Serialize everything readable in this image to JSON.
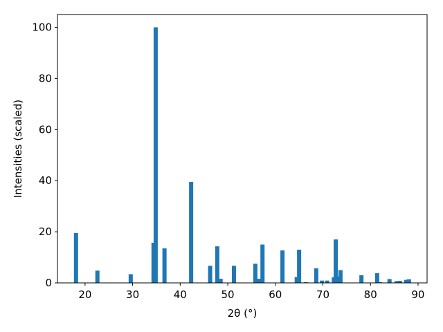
{
  "chart_data": {
    "type": "bar",
    "xlabel": "2θ (°)",
    "ylabel": "Intensities (scaled)",
    "x": [
      18.1,
      22.6,
      29.6,
      34.4,
      34.85,
      36.7,
      42.3,
      46.3,
      47.8,
      48.5,
      51.3,
      55.8,
      56.5,
      57.3,
      61.5,
      64.5,
      65.0,
      66.4,
      68.6,
      69.8,
      70.9,
      72.3,
      72.7,
      73.3,
      73.7,
      78.1,
      81.4,
      82.0,
      84.0,
      85.5,
      86.2,
      87.5,
      88.1
    ],
    "values": [
      19.5,
      4.8,
      3.4,
      15.7,
      100,
      13.5,
      39.5,
      6.7,
      14.3,
      1.6,
      6.7,
      7.5,
      1.6,
      15,
      12.7,
      2.3,
      13,
      0.3,
      5.7,
      0.9,
      0.9,
      2.2,
      17,
      2.5,
      5,
      3,
      3.8,
      0.3,
      1.5,
      0.7,
      0.8,
      1.2,
      1.4
    ],
    "color": "#1f77b4",
    "xlim": [
      14.2,
      91.9
    ],
    "ylim": [
      0,
      105
    ],
    "xticks": [
      20,
      30,
      40,
      50,
      60,
      70,
      80,
      90
    ],
    "yticks": [
      0,
      20,
      40,
      60,
      80,
      100
    ]
  }
}
